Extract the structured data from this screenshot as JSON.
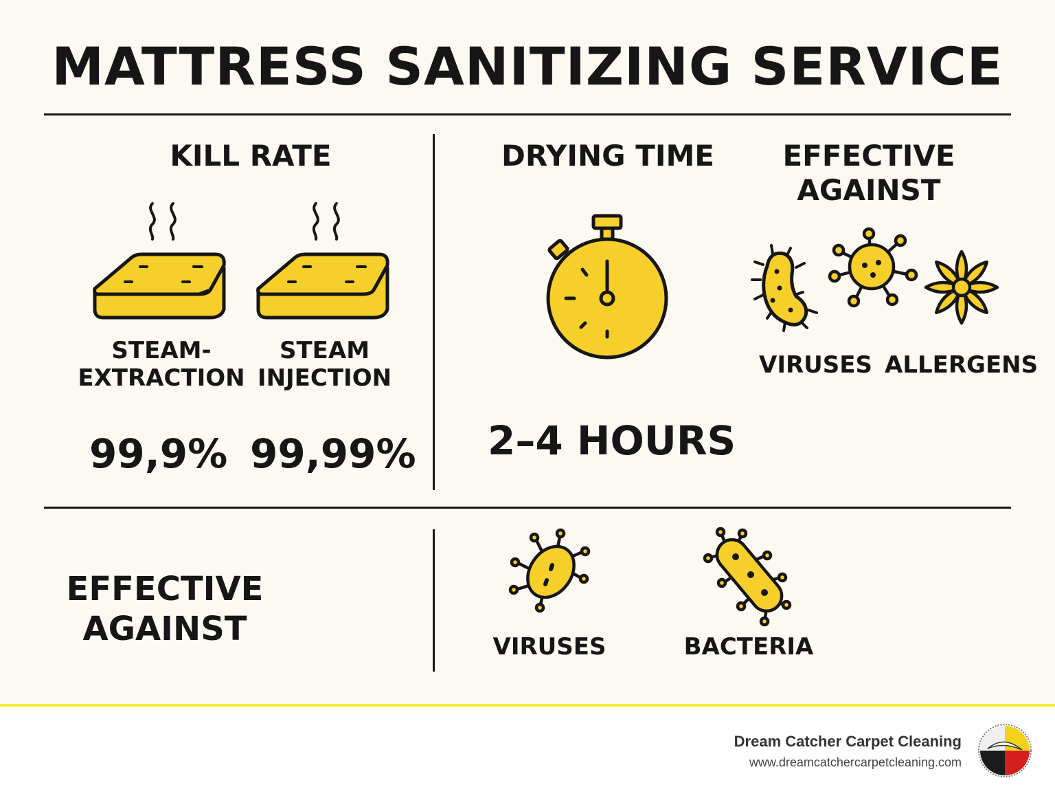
{
  "title": "MATTRESS SANITIZING SERVICE",
  "kill_rate": {
    "heading": "KILL RATE",
    "methods": [
      {
        "label_line1": "STEAM-",
        "label_line2": "EXTRACTION",
        "value": "99,9%",
        "icon": "mattress-steam-icon"
      },
      {
        "label_line1": "STEAM",
        "label_line2": "INJECTION",
        "value": "99,99%",
        "icon": "mattress-steam-icon"
      }
    ]
  },
  "drying": {
    "heading": "DRYING TIME",
    "value": "2–4 HOURS",
    "icon": "stopwatch-icon"
  },
  "effective_top": {
    "heading_line1": "EFFECTIVE",
    "heading_line2": "AGAINST",
    "items": [
      {
        "label": "VIRUSES",
        "icon": "bacillus-icon"
      },
      {
        "label": "",
        "icon": "virus-icon"
      },
      {
        "label": "ALLERGENS",
        "icon": "flower-icon"
      }
    ]
  },
  "effective_bottom": {
    "heading_line1": "EFFECTIVE",
    "heading_line2": "AGAINST",
    "items": [
      {
        "label": "VIRUSES",
        "icon": "virus-oval-icon"
      },
      {
        "label": "BACTERIA",
        "icon": "bacteria-icon"
      }
    ]
  },
  "footer": {
    "company": "Dream Catcher Carpet Cleaning",
    "url": "www.dreamcatchercarpetcleaning.com",
    "logo_icon": "medicine-wheel-logo"
  },
  "colors": {
    "accent": "#f6cf2b",
    "outline": "#161616",
    "background": "#fbf9f1",
    "footer_rule": "#f2ea3a"
  }
}
